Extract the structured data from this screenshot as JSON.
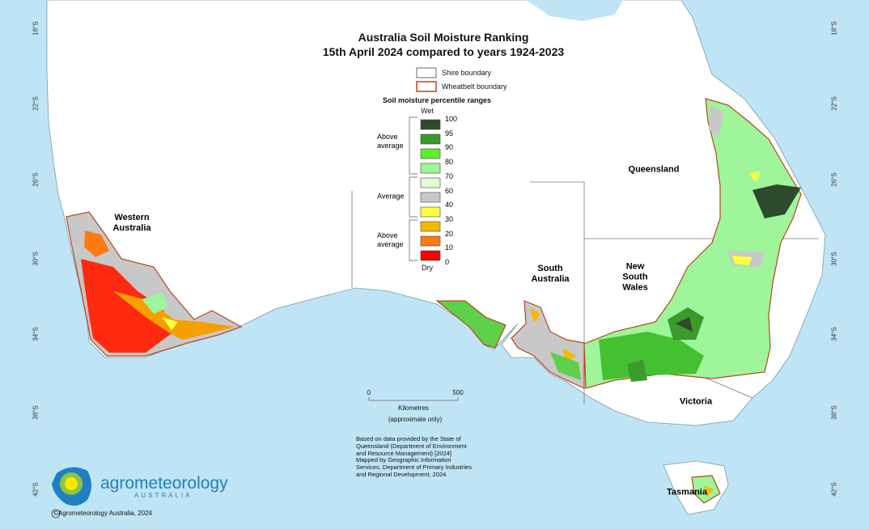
{
  "title": [
    "Australia Soil Moisture Ranking",
    "15th April 2024 compared to years 1924-2023"
  ],
  "boundary_legend": [
    "Shire boundary",
    "Wheatbelt boundary"
  ],
  "legend": {
    "title": "Soil moisture percentile ranges",
    "wet": "Wet",
    "dry": "Dry",
    "groups": [
      "Above average",
      "Average",
      "Above average"
    ],
    "ticks": [
      100,
      95,
      90,
      80,
      70,
      60,
      40,
      30,
      20,
      10,
      0
    ]
  },
  "latitudes": [
    "18°S",
    "22°S",
    "26°S",
    "30°S",
    "34°S",
    "38°S",
    "42°S"
  ],
  "regions": [
    "Western Australia",
    "Queensland",
    "South Australia",
    "New South Wales",
    "Victoria",
    "Tasmania"
  ],
  "scale": {
    "ticks": [
      "0",
      "500"
    ],
    "unit": "Kilometres",
    "note": "(approximate only)"
  },
  "source": [
    "Based on data provided by the State of",
    "Queensland (Department of Environment",
    "and Resource Management) [2024]",
    "Mapped by Geographic Information",
    "Services, Department of Primary Industries",
    "and Regional Development, 2024"
  ],
  "logo": {
    "name": "agrometeorology",
    "sub": "AUSTRALIA"
  },
  "copyright": "©Agrometeorology Australia, 2024"
}
